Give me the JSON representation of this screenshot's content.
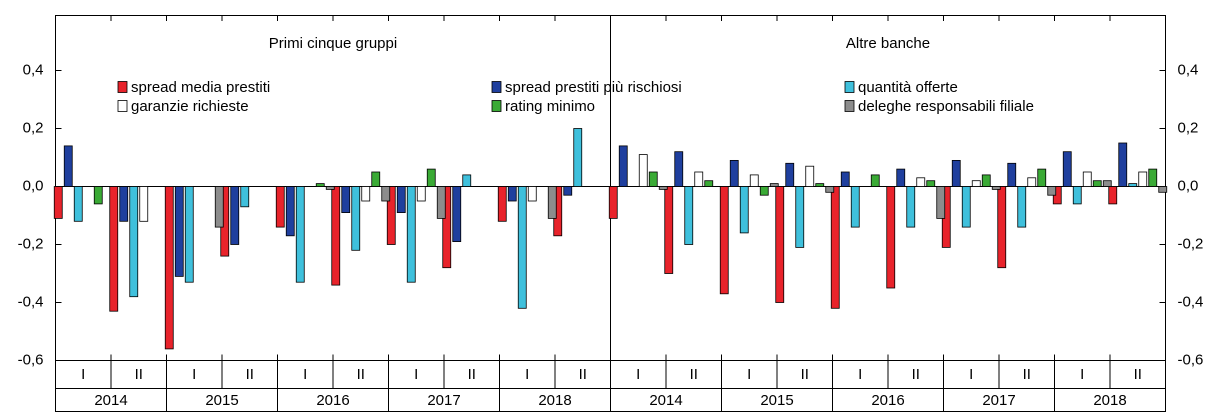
{
  "chart_data": {
    "type": "bar",
    "panels": [
      "Primi cinque gruppi",
      "Altre banche"
    ],
    "years": [
      "2014",
      "2015",
      "2016",
      "2017",
      "2018",
      "2014",
      "2015",
      "2016",
      "2017",
      "2018"
    ],
    "categories": [
      "I",
      "II",
      "I",
      "II",
      "I",
      "II",
      "I",
      "II",
      "I",
      "II",
      "I",
      "II",
      "I",
      "II",
      "I",
      "II",
      "I",
      "II",
      "I",
      "II"
    ],
    "series": [
      {
        "name": "spread media prestiti",
        "color": "#e8232b",
        "values": [
          -0.11,
          -0.43,
          -0.56,
          -0.24,
          -0.14,
          -0.34,
          -0.2,
          -0.28,
          -0.12,
          -0.17,
          -0.11,
          -0.3,
          -0.37,
          -0.4,
          -0.42,
          -0.35,
          -0.21,
          -0.28,
          -0.06,
          -0.06
        ]
      },
      {
        "name": "spread prestiti più rischiosi",
        "color": "#1f3f9e",
        "values": [
          0.14,
          -0.12,
          -0.31,
          -0.2,
          -0.17,
          -0.09,
          -0.09,
          -0.19,
          -0.05,
          -0.03,
          0.14,
          0.12,
          0.09,
          0.08,
          0.05,
          0.06,
          0.09,
          0.08,
          0.12,
          0.15
        ]
      },
      {
        "name": "quantità offerte",
        "color": "#3fc0dc",
        "values": [
          -0.12,
          -0.38,
          -0.33,
          -0.07,
          -0.33,
          -0.22,
          -0.33,
          0.04,
          -0.42,
          0.2,
          0.0,
          -0.2,
          -0.16,
          -0.21,
          -0.14,
          -0.14,
          -0.14,
          -0.14,
          -0.06,
          0.01
        ]
      },
      {
        "name": "garanzie richieste",
        "color": "#ffffff",
        "values": [
          0,
          -0.12,
          0,
          0,
          0,
          -0.05,
          -0.05,
          0,
          -0.05,
          0,
          0.11,
          0.05,
          0.04,
          0.07,
          0,
          0.03,
          0.02,
          0.03,
          0.05,
          0.05
        ]
      },
      {
        "name": "rating minimo",
        "color": "#3aaa35",
        "values": [
          -0.06,
          0,
          0,
          0,
          0.01,
          0.05,
          0.06,
          0,
          0,
          0,
          0.05,
          0.02,
          -0.03,
          0.01,
          0.04,
          0.02,
          0.04,
          0.06,
          0.02,
          0.06
        ]
      },
      {
        "name": "deleghe responsabili filiale",
        "color": "#8c8c8c",
        "values": [
          0,
          0,
          -0.14,
          0,
          -0.01,
          -0.05,
          -0.11,
          0,
          -0.11,
          0,
          -0.01,
          0,
          0.01,
          -0.02,
          0,
          -0.11,
          -0.01,
          -0.03,
          0.02,
          -0.02
        ]
      }
    ],
    "ylim": [
      -0.6,
      0.6
    ],
    "yticks": [
      {
        "value": -0.6,
        "label": "-0,6"
      },
      {
        "value": -0.4,
        "label": "-0,4"
      },
      {
        "value": -0.2,
        "label": "-0,2"
      },
      {
        "value": 0,
        "label": "0,0"
      },
      {
        "value": 0.2,
        "label": "0,2"
      },
      {
        "value": 0.4,
        "label": "0,4"
      }
    ]
  }
}
